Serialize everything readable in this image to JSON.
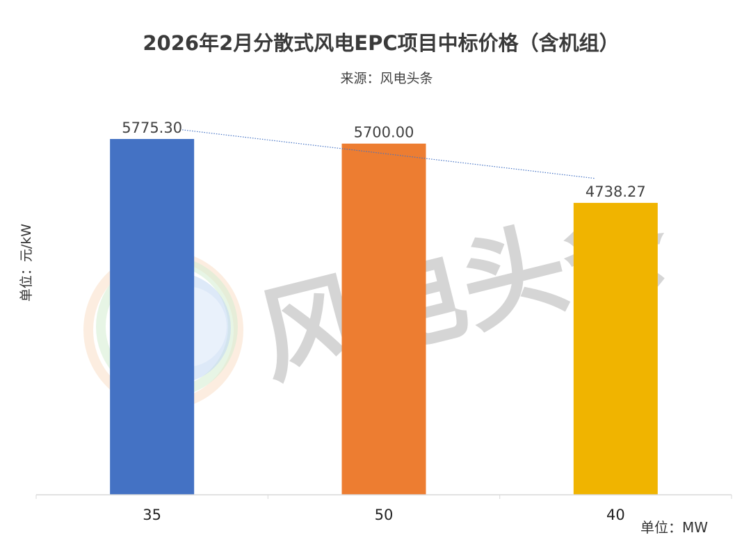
{
  "chart_data": {
    "type": "bar",
    "title": "2026年2月分散式风电EPC项目中标价格（含机组）",
    "subtitle": "来源：风电头条",
    "ylabel": "单位：元/kW",
    "xlabel": "单位：MW",
    "categories": [
      "35",
      "50",
      "40"
    ],
    "values": [
      5775.3,
      5700.0,
      4738.27
    ],
    "value_labels": [
      "5775.30",
      "5700.00",
      "4738.27"
    ],
    "colors": [
      "#4472c4",
      "#ed7d31",
      "#f0b400"
    ],
    "trendline": {
      "type": "linear",
      "style": "dotted",
      "color": "#4472c4"
    },
    "ylim": [
      0,
      5775.3
    ],
    "grid": false,
    "watermark": "风电头条"
  }
}
